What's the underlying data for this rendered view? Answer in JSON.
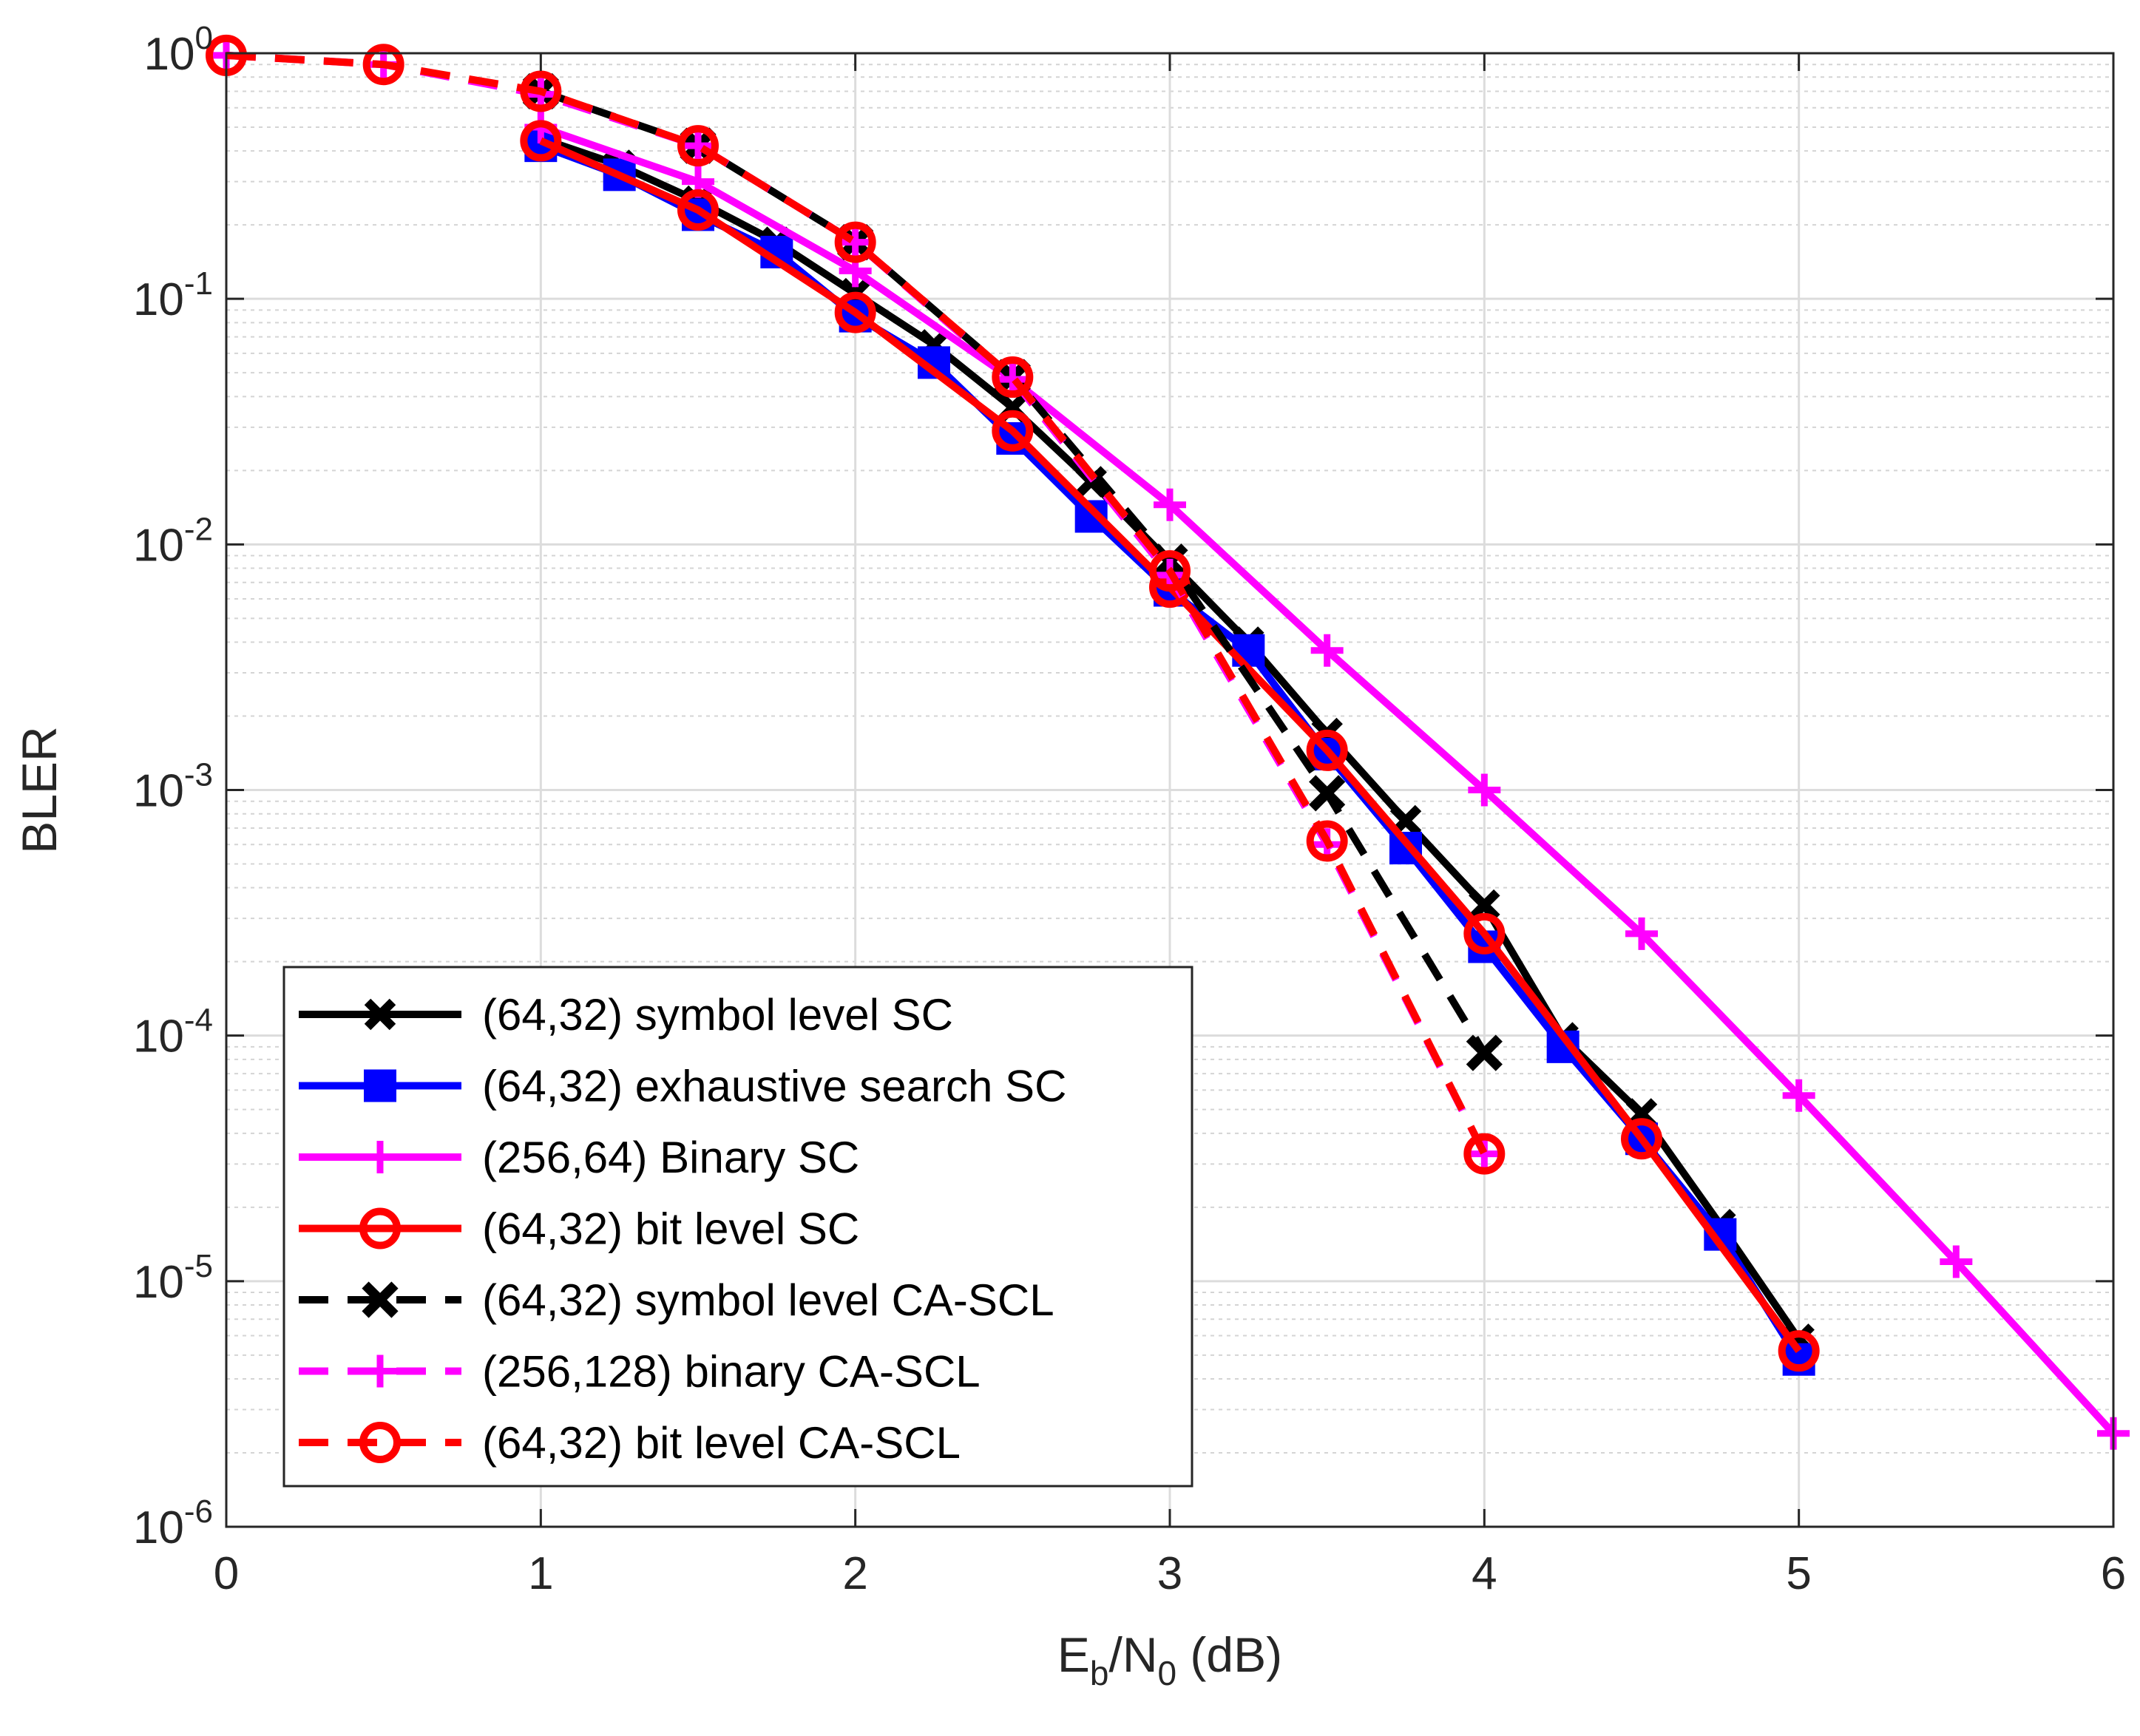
{
  "chart_data": {
    "type": "line",
    "title": "",
    "xlabel": {
      "main": "E",
      "sub1": "b",
      "mid": "/N",
      "sub2": "0",
      "tail": " (dB)"
    },
    "ylabel": "BLER",
    "xlim": [
      0,
      6
    ],
    "ylim": [
      1e-06,
      1
    ],
    "yscale": "log",
    "grid": true,
    "legend_position": "bottom-left",
    "x_ticks": [
      "0",
      "1",
      "2",
      "3",
      "4",
      "5",
      "6"
    ],
    "y_ticks": [
      {
        "base": "10",
        "exp": "0"
      },
      {
        "base": "10",
        "exp": "-1"
      },
      {
        "base": "10",
        "exp": "-2"
      },
      {
        "base": "10",
        "exp": "-3"
      },
      {
        "base": "10",
        "exp": "-4"
      },
      {
        "base": "10",
        "exp": "-5"
      },
      {
        "base": "10",
        "exp": "-6"
      }
    ],
    "series": [
      {
        "name": "(64,32) symbol level SC",
        "color": "#000000",
        "dash": "solid",
        "marker": "x",
        "x": [
          1,
          1.25,
          1.5,
          1.75,
          2,
          2.25,
          2.5,
          2.75,
          3,
          3.25,
          3.5,
          3.75,
          4,
          4.25,
          4.5,
          4.75,
          5
        ],
        "y": [
          0.45,
          0.35,
          0.25,
          0.17,
          0.105,
          0.065,
          0.036,
          0.018,
          0.0085,
          0.004,
          0.0017,
          0.00075,
          0.00034,
          9.8e-05,
          4.8e-05,
          1.7e-05,
          5.8e-06
        ]
      },
      {
        "name": "(64,32) exhaustive search SC",
        "color": "#0000ff",
        "dash": "solid",
        "marker": "square",
        "x": [
          1,
          1.25,
          1.5,
          1.75,
          2,
          2.25,
          2.5,
          2.75,
          3,
          3.25,
          3.5,
          3.75,
          4,
          4.25,
          4.5,
          4.75,
          5
        ],
        "y": [
          0.42,
          0.32,
          0.22,
          0.155,
          0.085,
          0.055,
          0.027,
          0.013,
          0.0065,
          0.0037,
          0.0014,
          0.00058,
          0.00023,
          9e-05,
          3.8e-05,
          1.55e-05,
          4.8e-06
        ]
      },
      {
        "name": "(256,64) Binary SC",
        "color": "#ff00ff",
        "dash": "solid",
        "marker": "plus",
        "x": [
          1,
          1.5,
          2,
          2.5,
          3,
          3.5,
          4,
          4.5,
          5,
          5.5,
          6
        ],
        "y": [
          0.5,
          0.3,
          0.13,
          0.047,
          0.0145,
          0.0037,
          0.001,
          0.00026,
          5.7e-05,
          1.2e-05,
          2.4e-06
        ]
      },
      {
        "name": "(64,32) bit level SC",
        "color": "#ff0000",
        "dash": "solid",
        "marker": "circle",
        "x": [
          1,
          1.5,
          2,
          2.5,
          3,
          3.5,
          4,
          4.5,
          5
        ],
        "y": [
          0.44,
          0.23,
          0.088,
          0.029,
          0.0067,
          0.00145,
          0.00026,
          3.8e-05,
          5.2e-06
        ]
      },
      {
        "name": "(64,32) symbol level CA-SCL",
        "color": "#000000",
        "dash": "dashed",
        "marker": "x",
        "x": [
          1,
          1.5,
          2,
          2.5,
          3,
          3.5,
          4
        ],
        "y": [
          0.7,
          0.42,
          0.17,
          0.048,
          0.0085,
          0.00097,
          8.5e-05
        ]
      },
      {
        "name": "(256,128) binary CA-SCL",
        "color": "#ff00ff",
        "dash": "dashed",
        "marker": "plus",
        "x": [
          0,
          0.5,
          1,
          1.5,
          2,
          2.5,
          3,
          3.5,
          4
        ],
        "y": [
          0.98,
          0.9,
          0.68,
          0.42,
          0.17,
          0.047,
          0.0075,
          0.0006,
          3.3e-05
        ]
      },
      {
        "name": "(64,32) bit level CA-SCL",
        "color": "#ff0000",
        "dash": "dashed",
        "marker": "circle",
        "x": [
          0,
          0.5,
          1,
          1.5,
          2,
          2.5,
          3,
          3.5,
          4
        ],
        "y": [
          0.98,
          0.9,
          0.7,
          0.42,
          0.17,
          0.048,
          0.0078,
          0.00062,
          3.3e-05
        ]
      }
    ]
  }
}
